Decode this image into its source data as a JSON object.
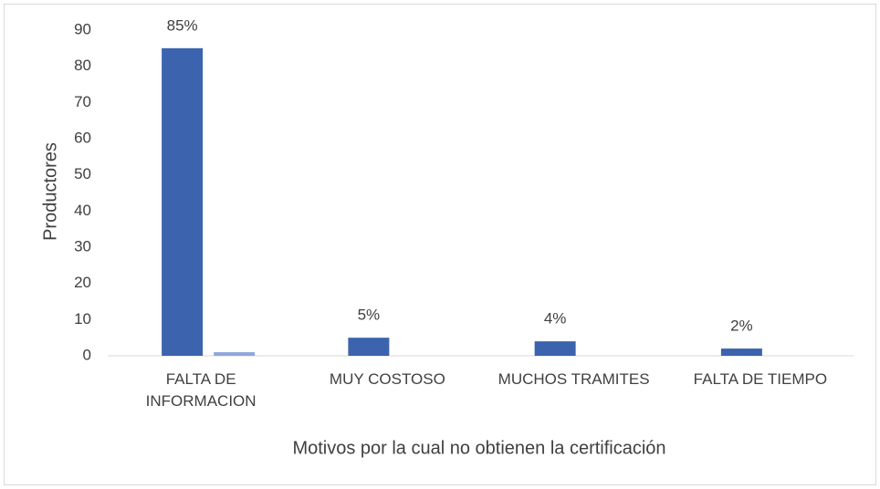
{
  "chart_data": {
    "type": "bar",
    "categories": [
      "FALTA DE INFORMACION",
      "MUY COSTOSO",
      "MUCHOS TRAMITES",
      "FALTA DE TIEMPO"
    ],
    "series": [
      {
        "color": "#3c63ad",
        "values": [
          85,
          5,
          4,
          2
        ],
        "value_labels": [
          "85%",
          "5%",
          "4%",
          "2%"
        ]
      },
      {
        "color": "#8fa7dc",
        "values": [
          1,
          0,
          0,
          0
        ]
      }
    ],
    "xlabel": "Motivos por la cual no obtienen  la certificación",
    "ylabel": "Productores",
    "ylim": [
      0,
      90
    ],
    "yticks": [
      0,
      10,
      20,
      30,
      40,
      50,
      60,
      70,
      80,
      90
    ],
    "grid": false
  }
}
